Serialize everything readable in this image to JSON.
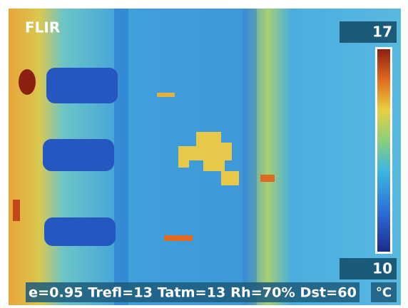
{
  "logo": "FLIR",
  "scale": {
    "max": "17",
    "min": "10"
  },
  "parameters": "e=0.95 Trefl=13 Tatm=13 Rh=70% Dst=60",
  "unit": "°C"
}
